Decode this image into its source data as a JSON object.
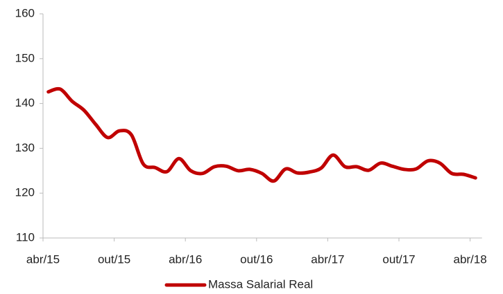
{
  "chart_data": {
    "type": "line",
    "categories": [
      "abr/15",
      null,
      null,
      null,
      null,
      null,
      "out/15",
      null,
      null,
      null,
      null,
      null,
      "abr/16",
      null,
      null,
      null,
      null,
      null,
      "out/16",
      null,
      null,
      null,
      null,
      null,
      "abr/17",
      null,
      null,
      null,
      null,
      null,
      "out/17",
      null,
      null,
      null,
      null,
      null,
      "abr/18"
    ],
    "series": [
      {
        "name": "Massa Salarial Real",
        "color": "#c00000",
        "values": [
          142.6,
          143.2,
          140.5,
          138.5,
          135.3,
          132.4,
          133.9,
          133.0,
          126.5,
          125.7,
          124.8,
          127.7,
          125.0,
          124.4,
          125.9,
          126.0,
          125.0,
          125.3,
          124.4,
          122.7,
          125.4,
          124.5,
          124.7,
          125.6,
          128.5,
          125.9,
          125.9,
          125.1,
          126.7,
          126.0,
          125.3,
          125.4,
          127.2,
          126.7,
          124.4,
          124.2,
          123.4
        ]
      }
    ],
    "ylim": [
      110,
      160
    ],
    "yticks": [
      110,
      120,
      130,
      140,
      150,
      160
    ],
    "grid": false,
    "legend": "bottom"
  }
}
